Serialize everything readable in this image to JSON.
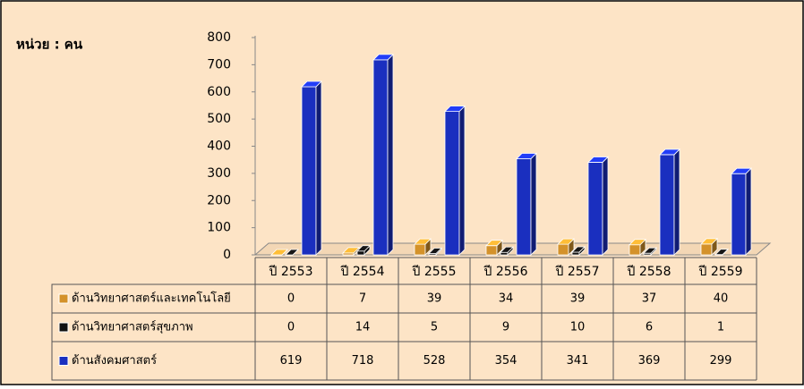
{
  "chart_data": {
    "type": "bar",
    "title": "หน่วย : คน",
    "categories": [
      "ปี 2553",
      "ปี 2554",
      "ปี 2555",
      "ปี 2556",
      "ปี 2557",
      "ปี 2558",
      "ปี 2559"
    ],
    "series": [
      {
        "name": "ด้านวิทยาศาสตร์และเทคโนโลยี",
        "color": "#d4922a",
        "values": [
          0,
          7,
          39,
          34,
          39,
          37,
          40
        ]
      },
      {
        "name": "ด้านวิทยาศาสตร์สุขภาพ",
        "color": "#111111",
        "values": [
          0,
          14,
          5,
          9,
          10,
          6,
          1
        ]
      },
      {
        "name": "ด้านสังคมศาสตร์",
        "color": "#1a2fbf",
        "values": [
          619,
          718,
          528,
          354,
          341,
          369,
          299
        ]
      }
    ],
    "ylim": [
      0,
      800
    ],
    "yticks": [
      0,
      100,
      200,
      300,
      400,
      500,
      600,
      700,
      800
    ]
  }
}
